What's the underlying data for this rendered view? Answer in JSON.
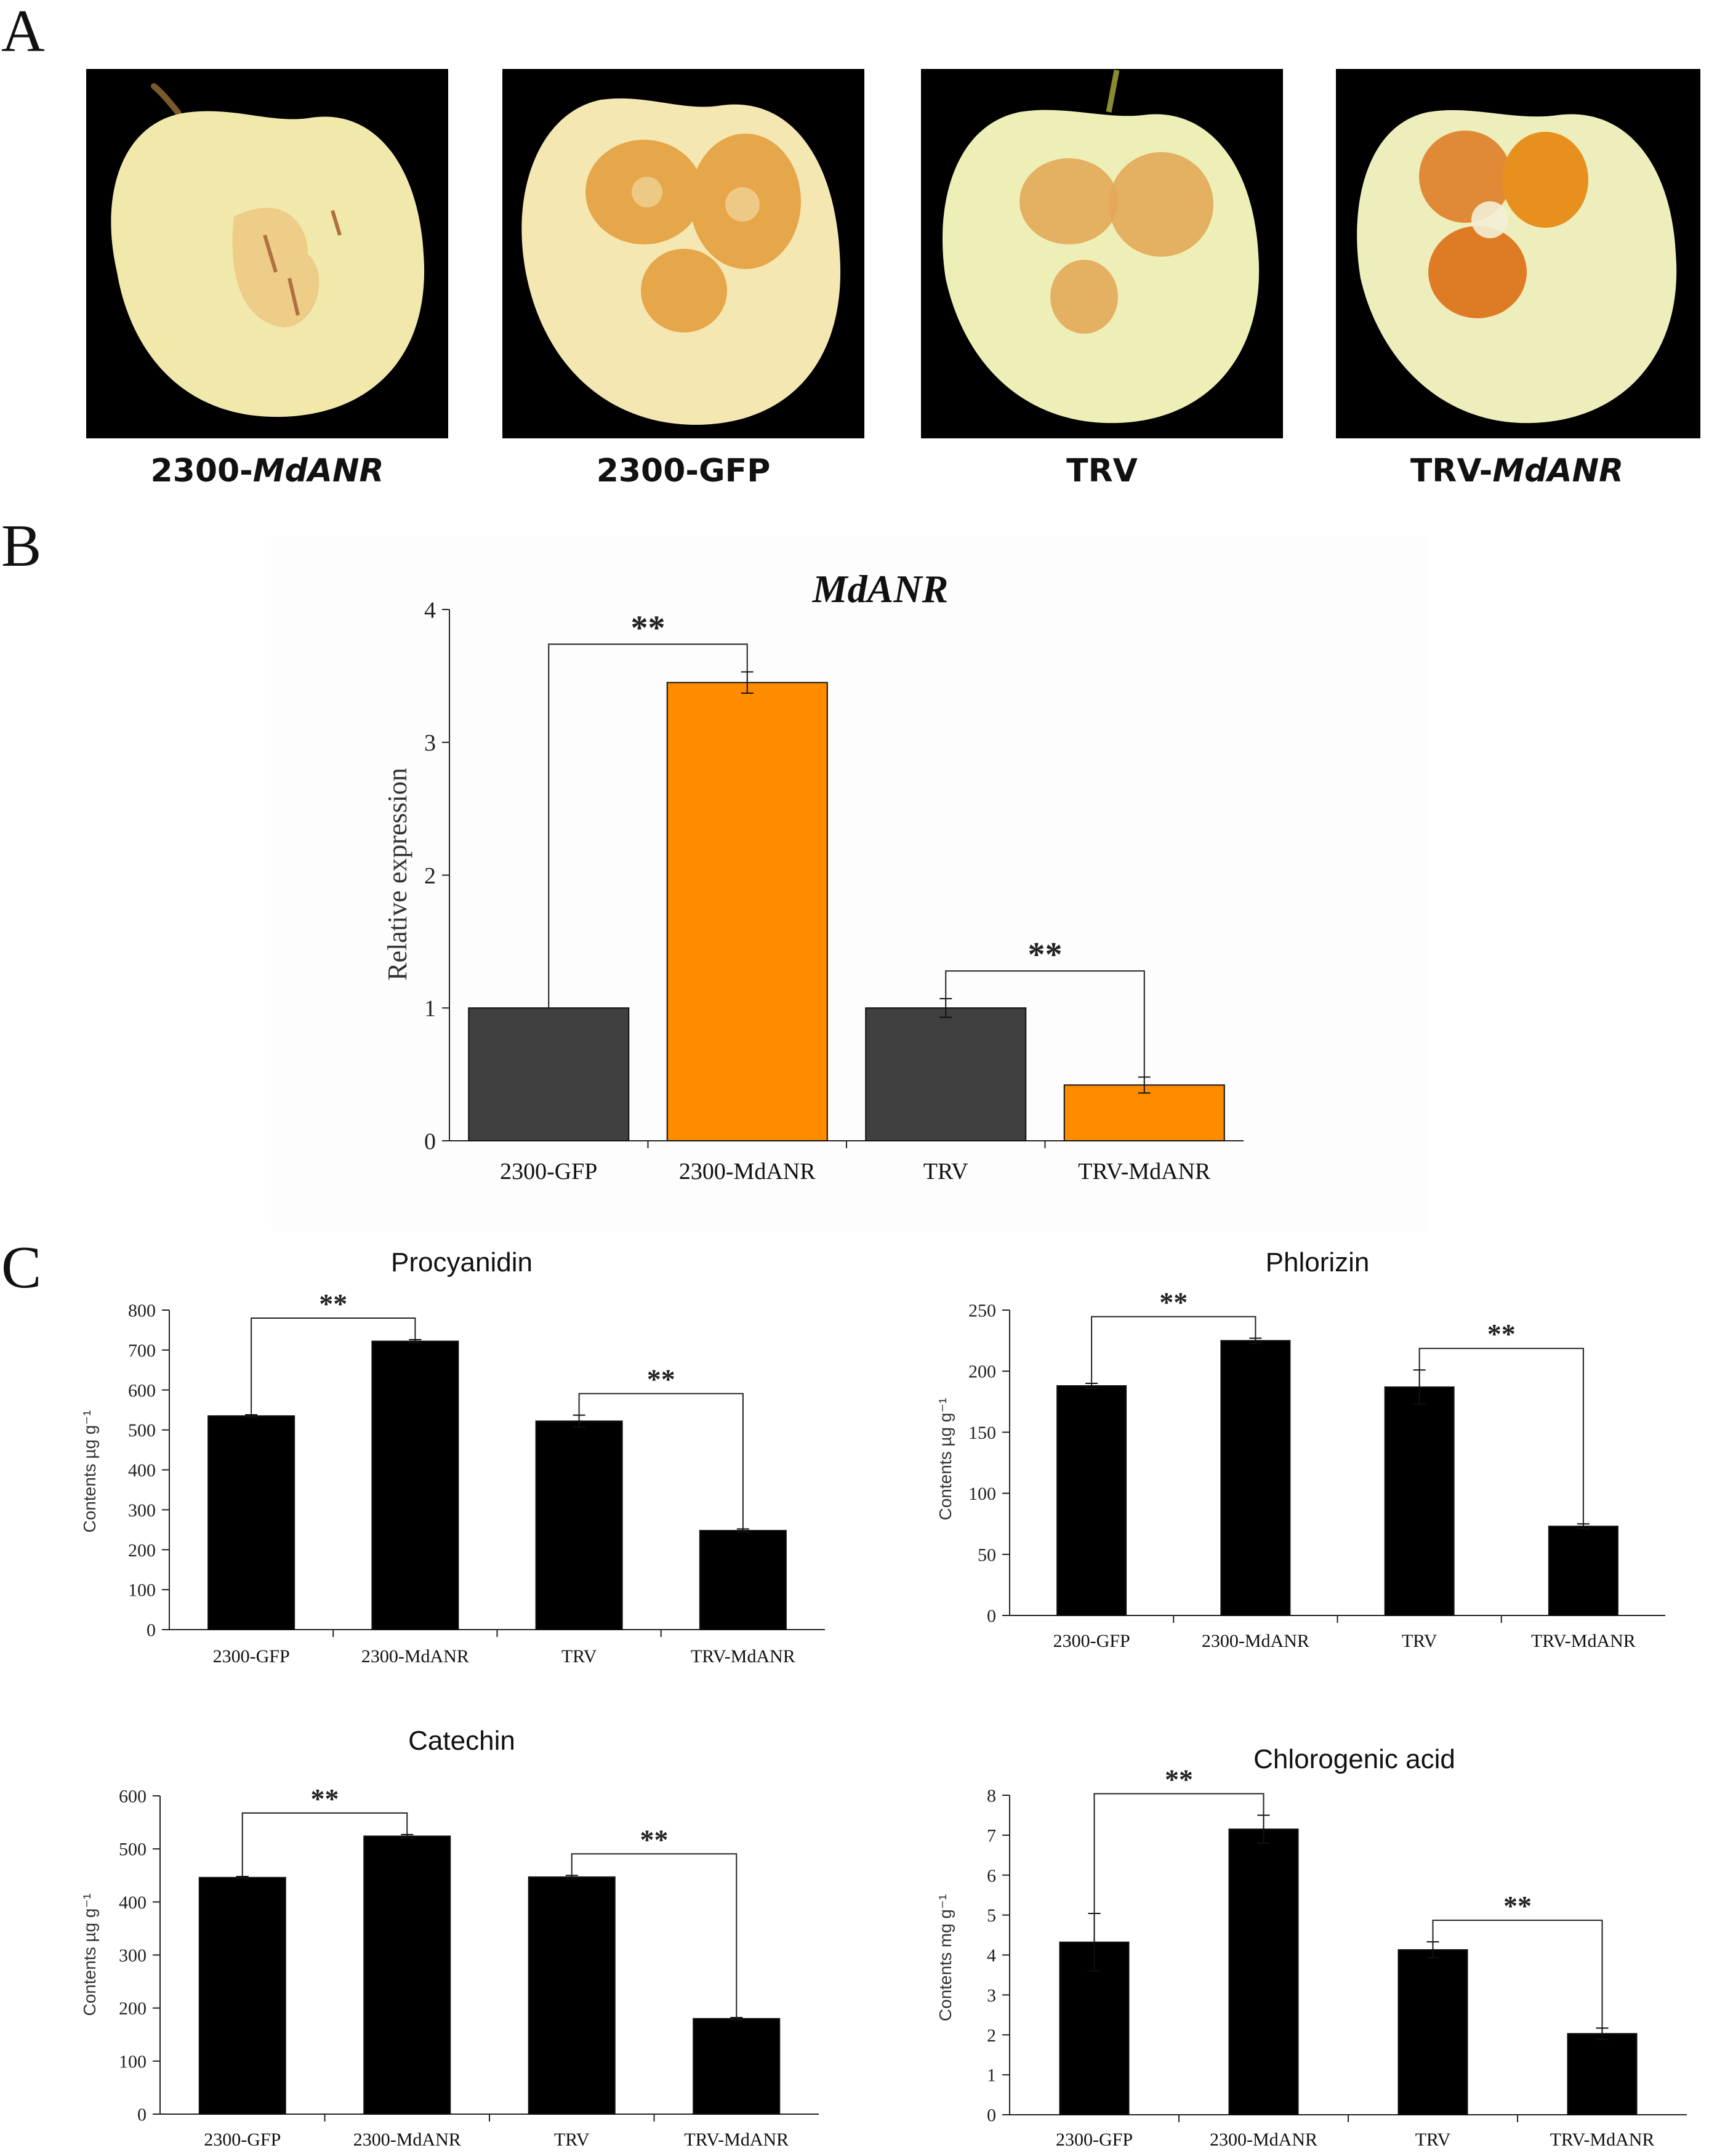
{
  "panels": {
    "a": "A",
    "b": "B",
    "c": "C"
  },
  "photos": [
    {
      "prefix": "2300-",
      "gene": "MdANR"
    },
    {
      "prefix": "2300-GFP",
      "gene": ""
    },
    {
      "prefix": "TRV",
      "gene": ""
    },
    {
      "prefix": "TRV-",
      "gene": "MdANR"
    }
  ],
  "colors": {
    "dark_bar": "#404040",
    "orange_bar": "#ff8c00",
    "black_bar": "#000000",
    "apple_skin": "#f2eab0",
    "lesion": "#e39b3c"
  },
  "chart_data": [
    {
      "id": "mdanr",
      "type": "bar",
      "title": "MdANR",
      "ylabel": "Relative expression",
      "xlabel": "",
      "categories": [
        "2300-GFP",
        "2300-MdANR",
        "TRV",
        "TRV-MdANR"
      ],
      "values": [
        1.0,
        3.45,
        1.0,
        0.42
      ],
      "errors": [
        0,
        0.08,
        0.07,
        0.06
      ],
      "bar_colors": [
        "#404040",
        "#ff8c00",
        "#404040",
        "#ff8c00"
      ],
      "ylim": [
        0,
        4
      ],
      "yticks": [
        0,
        1,
        2,
        3,
        4
      ],
      "significance": [
        {
          "from": 0,
          "to": 1,
          "label": "**"
        },
        {
          "from": 2,
          "to": 3,
          "label": "**"
        }
      ]
    },
    {
      "id": "procyanidin",
      "type": "bar",
      "title": "Procyanidin",
      "ylabel": "Contents µg g⁻¹",
      "xlabel": "",
      "categories": [
        "2300-GFP",
        "2300-MdANR",
        "TRV",
        "TRV-MdANR"
      ],
      "values": [
        535,
        722,
        522,
        248
      ],
      "errors": [
        3,
        4,
        15,
        4
      ],
      "ylim": [
        0,
        800
      ],
      "yticks": [
        0,
        100,
        200,
        300,
        400,
        500,
        600,
        700,
        800
      ],
      "significance": [
        {
          "from": 0,
          "to": 1,
          "label": "**"
        },
        {
          "from": 2,
          "to": 3,
          "label": "**"
        }
      ]
    },
    {
      "id": "phlorizin",
      "type": "bar",
      "title": "Phlorizin",
      "ylabel": "Contents µg g⁻¹",
      "xlabel": "",
      "categories": [
        "2300-GFP",
        "2300-MdANR",
        "TRV",
        "TRV-MdANR"
      ],
      "values": [
        188,
        225,
        187,
        73
      ],
      "errors": [
        2,
        2,
        14,
        2
      ],
      "ylim": [
        0,
        250
      ],
      "yticks": [
        0,
        50,
        100,
        150,
        200,
        250
      ],
      "significance": [
        {
          "from": 0,
          "to": 1,
          "label": "**"
        },
        {
          "from": 2,
          "to": 3,
          "label": "**"
        }
      ]
    },
    {
      "id": "catechin",
      "type": "bar",
      "title": "Catechin",
      "ylabel": "Contents µg g⁻¹",
      "xlabel": "",
      "categories": [
        "2300-GFP",
        "2300-MdANR",
        "TRV",
        "TRV-MdANR"
      ],
      "values": [
        446,
        524,
        447,
        180
      ],
      "errors": [
        2,
        3,
        3,
        2
      ],
      "ylim": [
        0,
        600
      ],
      "yticks": [
        0,
        100,
        200,
        300,
        400,
        500,
        600
      ],
      "significance": [
        {
          "from": 0,
          "to": 1,
          "label": "**"
        },
        {
          "from": 2,
          "to": 3,
          "label": "**"
        }
      ]
    },
    {
      "id": "chlorogenic",
      "type": "bar",
      "title": "Chlorogenic acid",
      "ylabel": "Contents mg g⁻¹",
      "xlabel": "",
      "categories": [
        "2300-GFP",
        "2300-MdANR",
        "TRV",
        "TRV-MdANR"
      ],
      "values": [
        4.32,
        7.15,
        4.13,
        2.03
      ],
      "errors": [
        0.72,
        0.35,
        0.2,
        0.14
      ],
      "ylim": [
        0,
        8
      ],
      "yticks": [
        0,
        1,
        2,
        3,
        4,
        5,
        6,
        7,
        8
      ],
      "significance": [
        {
          "from": 0,
          "to": 1,
          "label": "**"
        },
        {
          "from": 2,
          "to": 3,
          "label": "**"
        }
      ]
    }
  ]
}
